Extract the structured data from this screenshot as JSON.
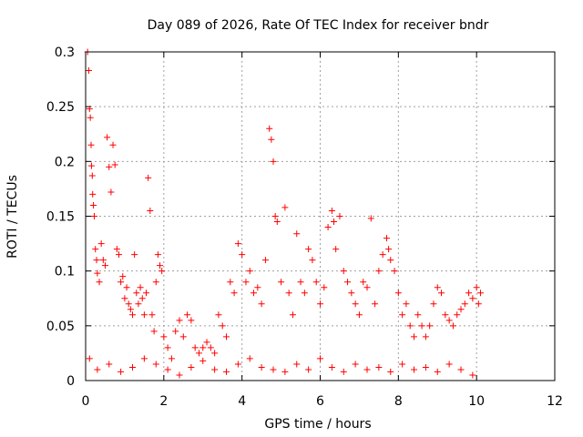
{
  "chart_data": {
    "type": "scatter",
    "title": "Day 089 of 2026, Rate Of TEC Index for receiver bndr",
    "xlabel": "GPS time / hours",
    "ylabel": "ROTI / TECUs",
    "xlim": [
      0,
      12
    ],
    "ylim": [
      0,
      0.3
    ],
    "x_ticks": [
      "0",
      "2",
      "4",
      "6",
      "8",
      "10",
      "12"
    ],
    "y_ticks": [
      "0",
      "0.05",
      "0.1",
      "0.15",
      "0.2",
      "0.25",
      "0.3"
    ],
    "grid": true,
    "legend": "none",
    "marker": "+",
    "marker_color": "#ff0000",
    "series": [
      {
        "x": [
          0.05,
          0.08,
          0.1,
          0.12,
          0.14,
          0.15,
          0.17,
          0.18,
          0.2,
          0.22,
          0.25,
          0.28,
          0.3,
          0.35,
          0.4,
          0.45,
          0.5,
          0.55,
          0.6,
          0.65,
          0.7,
          0.75,
          0.8,
          0.85,
          0.9,
          0.95,
          1.0,
          1.05,
          1.1,
          1.15,
          1.2,
          1.25,
          1.3,
          1.35,
          1.4,
          1.45,
          1.5,
          1.55,
          1.6,
          1.65,
          1.7,
          1.75,
          1.8,
          1.85,
          1.9,
          1.95,
          2.0,
          2.1,
          2.2,
          2.3,
          2.4,
          2.5,
          2.6,
          2.7,
          2.8,
          2.9,
          3.0,
          3.1,
          3.2,
          3.3,
          3.4,
          3.5,
          3.6,
          3.7,
          3.8,
          3.9,
          4.0,
          4.1,
          4.2,
          4.3,
          4.4,
          4.5,
          4.6,
          4.7,
          4.75,
          4.8,
          4.85,
          4.9,
          5.0,
          5.1,
          5.2,
          5.3,
          5.4,
          5.5,
          5.6,
          5.7,
          5.8,
          5.9,
          6.0,
          6.1,
          6.2,
          6.3,
          6.35,
          6.4,
          6.5,
          6.6,
          6.7,
          6.8,
          6.9,
          7.0,
          7.1,
          7.2,
          7.3,
          7.4,
          7.5,
          7.6,
          7.7,
          7.75,
          7.8,
          7.9,
          8.0,
          8.1,
          8.2,
          8.3,
          8.4,
          8.5,
          8.6,
          8.7,
          8.8,
          8.9,
          9.0,
          9.1,
          9.2,
          9.3,
          9.4,
          9.5,
          9.6,
          9.7,
          9.8,
          9.9,
          10.0,
          10.05,
          10.1,
          0.1,
          0.3,
          0.6,
          0.9,
          1.2,
          1.5,
          1.8,
          2.1,
          2.4,
          2.7,
          3.0,
          3.3,
          3.6,
          3.9,
          4.2,
          4.5,
          4.8,
          5.1,
          5.4,
          5.7,
          6.0,
          6.3,
          6.6,
          6.9,
          7.2,
          7.5,
          7.8,
          8.1,
          8.4,
          8.7,
          9.0,
          9.3,
          9.6,
          9.9
        ],
        "y": [
          0.3,
          0.283,
          0.248,
          0.24,
          0.215,
          0.196,
          0.187,
          0.17,
          0.16,
          0.15,
          0.12,
          0.11,
          0.098,
          0.09,
          0.125,
          0.11,
          0.105,
          0.222,
          0.195,
          0.172,
          0.215,
          0.197,
          0.12,
          0.115,
          0.09,
          0.095,
          0.075,
          0.085,
          0.07,
          0.065,
          0.06,
          0.115,
          0.08,
          0.07,
          0.085,
          0.075,
          0.06,
          0.08,
          0.185,
          0.155,
          0.06,
          0.045,
          0.09,
          0.115,
          0.105,
          0.1,
          0.04,
          0.03,
          0.02,
          0.045,
          0.055,
          0.04,
          0.06,
          0.055,
          0.03,
          0.025,
          0.03,
          0.035,
          0.03,
          0.025,
          0.06,
          0.05,
          0.04,
          0.09,
          0.08,
          0.125,
          0.115,
          0.09,
          0.1,
          0.08,
          0.085,
          0.07,
          0.11,
          0.23,
          0.22,
          0.2,
          0.15,
          0.145,
          0.09,
          0.158,
          0.08,
          0.06,
          0.134,
          0.09,
          0.08,
          0.12,
          0.11,
          0.09,
          0.07,
          0.085,
          0.14,
          0.155,
          0.145,
          0.12,
          0.15,
          0.1,
          0.09,
          0.08,
          0.07,
          0.06,
          0.09,
          0.085,
          0.148,
          0.07,
          0.1,
          0.115,
          0.13,
          0.12,
          0.11,
          0.1,
          0.08,
          0.06,
          0.07,
          0.05,
          0.04,
          0.06,
          0.05,
          0.04,
          0.05,
          0.07,
          0.085,
          0.08,
          0.06,
          0.055,
          0.05,
          0.06,
          0.065,
          0.07,
          0.08,
          0.075,
          0.085,
          0.07,
          0.08,
          0.02,
          0.01,
          0.015,
          0.008,
          0.012,
          0.02,
          0.015,
          0.01,
          0.005,
          0.012,
          0.018,
          0.01,
          0.008,
          0.015,
          0.02,
          0.012,
          0.01,
          0.008,
          0.015,
          0.01,
          0.02,
          0.012,
          0.008,
          0.015,
          0.01,
          0.012,
          0.008,
          0.015,
          0.01,
          0.012,
          0.008,
          0.015,
          0.01,
          0.005
        ]
      }
    ]
  }
}
